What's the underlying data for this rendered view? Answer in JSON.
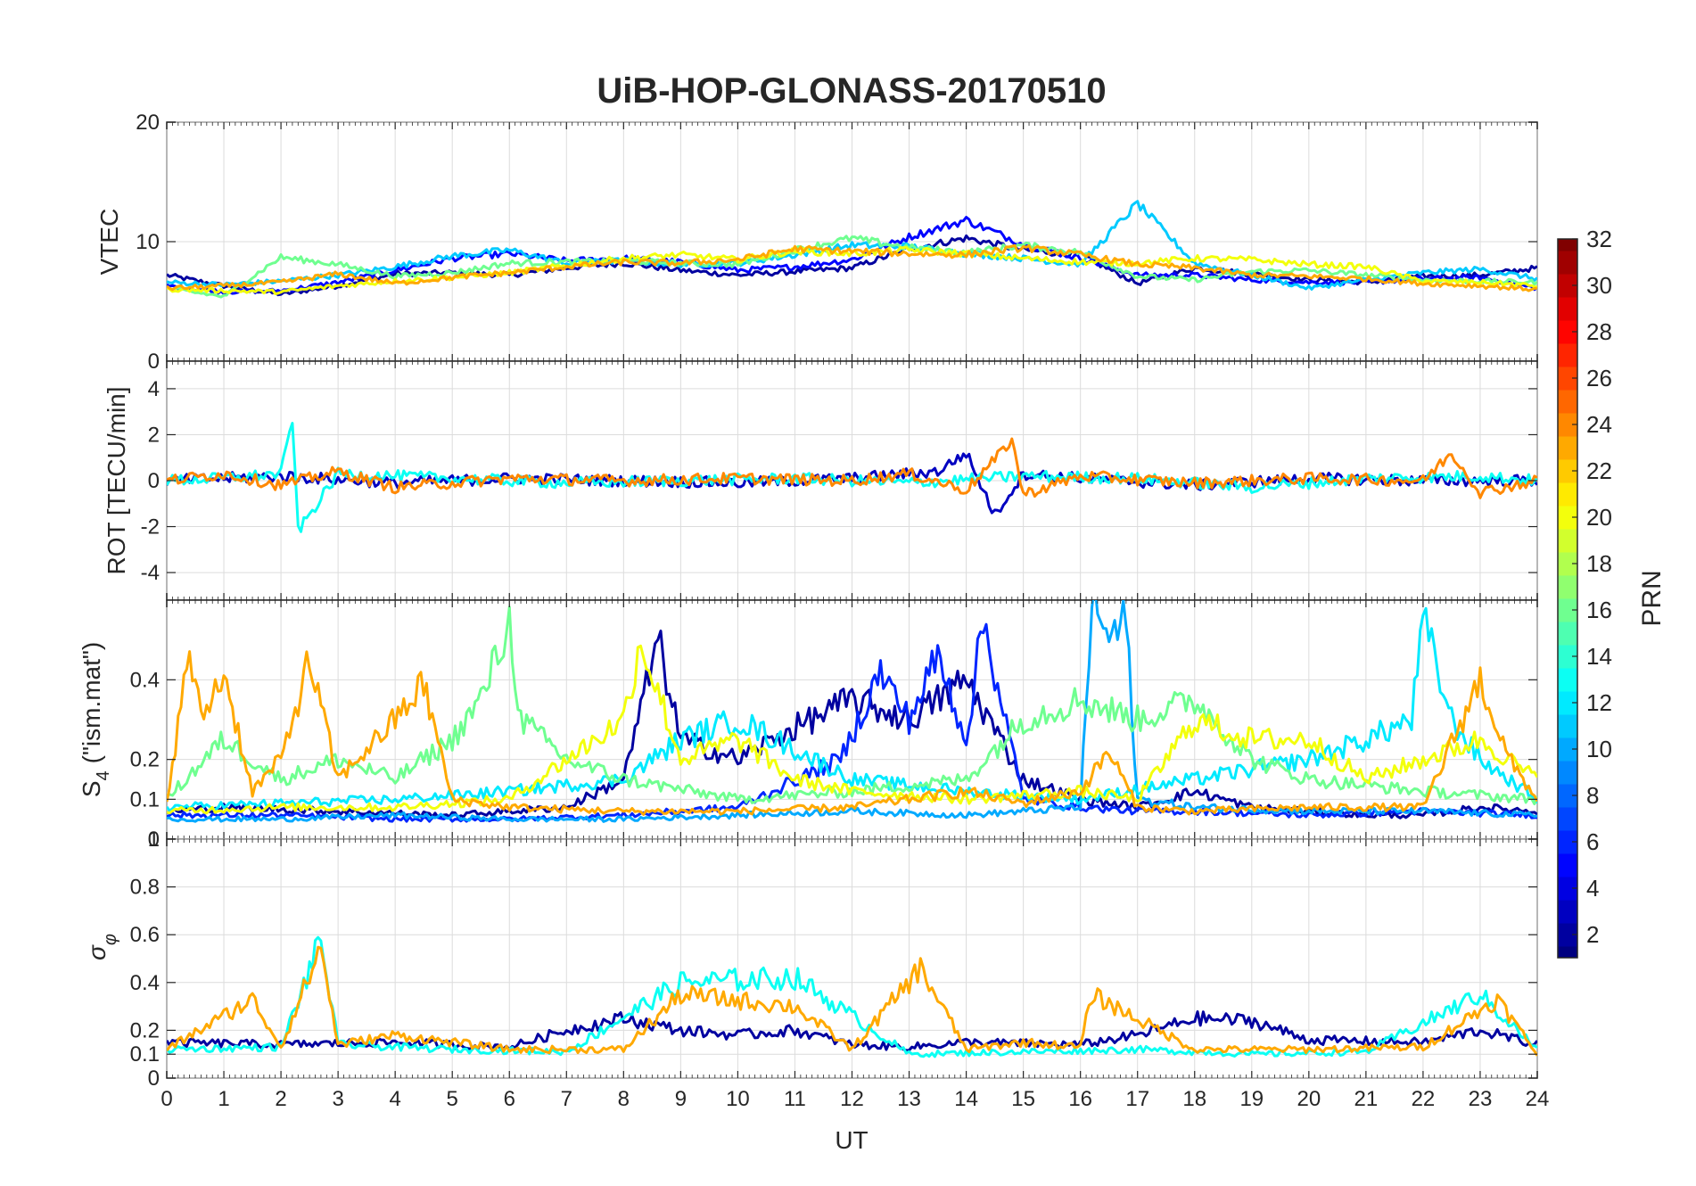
{
  "chart_data": {
    "type": "line",
    "title": "UiB-HOP-GLONASS-20170510",
    "xlabel": "UT",
    "xlim": [
      0,
      24
    ],
    "xticks": [
      "0",
      "1",
      "2",
      "3",
      "4",
      "5",
      "6",
      "7",
      "8",
      "9",
      "10",
      "11",
      "12",
      "13",
      "14",
      "15",
      "16",
      "17",
      "18",
      "19",
      "20",
      "21",
      "22",
      "23",
      "24"
    ],
    "grid": true,
    "colorbar": {
      "label": "PRN",
      "range": [
        1,
        32
      ],
      "ticks": [
        "2",
        "4",
        "6",
        "8",
        "10",
        "12",
        "14",
        "16",
        "18",
        "20",
        "22",
        "24",
        "26",
        "28",
        "30",
        "32"
      ],
      "colormap": "jet"
    },
    "panels": [
      {
        "name": "vtec",
        "ylabel": "VTEC",
        "ylim": [
          0,
          20
        ],
        "yticks": [
          "0",
          "10",
          "20"
        ],
        "ytick_values": [
          0,
          10,
          20
        ],
        "series": [
          {
            "prn": 2,
            "x": [
              0,
              1,
              2,
              3,
              4,
              5,
              6,
              7,
              8,
              9,
              10,
              11,
              12,
              13,
              14,
              15,
              16,
              17,
              18,
              19,
              20,
              21,
              22,
              23,
              24
            ],
            "values": [
              7.2,
              6.3,
              5.6,
              6.3,
              7.3,
              7.4,
              7.2,
              7.8,
              8.2,
              7.6,
              7.2,
              7.5,
              7.8,
              9.4,
              10.3,
              9.3,
              8.9,
              6.5,
              7.8,
              7.3,
              6.8,
              6.6,
              7.1,
              7.2,
              7.8
            ]
          },
          {
            "prn": 5,
            "x": [
              0,
              1,
              2,
              3,
              4,
              5,
              6,
              7,
              8,
              9,
              10,
              11,
              12,
              13,
              14,
              15,
              16,
              17,
              18,
              19,
              20,
              21,
              22,
              23,
              24
            ],
            "values": [
              6.3,
              5.8,
              5.9,
              6.6,
              7.6,
              8.6,
              9.0,
              8.4,
              8.6,
              8.3,
              7.6,
              7.9,
              8.5,
              10.4,
              11.8,
              9.8,
              8.6,
              7.2,
              7.2,
              6.8,
              6.6,
              6.6,
              6.9,
              7.0,
              6.1
            ]
          },
          {
            "prn": 11,
            "x": [
              0,
              1,
              2,
              3,
              4,
              5,
              6,
              7,
              8,
              9,
              10,
              11,
              12,
              13,
              14,
              15,
              16,
              17,
              18,
              19,
              20,
              21,
              22,
              23,
              24
            ],
            "values": [
              6.6,
              6.4,
              6.7,
              7.2,
              7.9,
              8.8,
              9.3,
              8.2,
              8.4,
              8.1,
              8.2,
              8.9,
              9.7,
              9.6,
              9.0,
              8.6,
              8.1,
              13.2,
              8.2,
              7.2,
              6.1,
              6.8,
              7.4,
              7.7,
              6.9
            ]
          },
          {
            "prn": 16,
            "x": [
              0,
              1,
              2,
              3,
              4,
              5,
              6,
              7,
              8,
              9,
              10,
              11,
              12,
              13,
              14,
              15,
              16,
              17,
              18,
              19,
              20,
              21,
              22,
              23,
              24
            ],
            "values": [
              6.1,
              5.4,
              8.7,
              8.1,
              7.1,
              7.4,
              8.2,
              8.3,
              8.4,
              8.2,
              8.1,
              9.3,
              10.3,
              9.5,
              9.1,
              9.7,
              9.1,
              7.1,
              6.8,
              7.5,
              7.6,
              7.2,
              6.8,
              6.7,
              6.6
            ]
          },
          {
            "prn": 20,
            "x": [
              0,
              1,
              2,
              3,
              4,
              5,
              6,
              7,
              8,
              9,
              10,
              11,
              12,
              13,
              14,
              15,
              16,
              17,
              18,
              19,
              20,
              21,
              22,
              23,
              24
            ],
            "values": [
              6.0,
              5.9,
              5.8,
              6.3,
              6.7,
              7.0,
              7.4,
              8.0,
              8.6,
              8.9,
              8.5,
              9.2,
              9.0,
              9.3,
              9.0,
              8.6,
              8.3,
              8.2,
              8.6,
              8.5,
              8.1,
              7.9,
              6.7,
              6.6,
              6.3
            ]
          },
          {
            "prn": 23,
            "x": [
              0,
              1,
              2,
              3,
              4,
              5,
              6,
              7,
              8,
              9,
              10,
              11,
              12,
              13,
              14,
              15,
              16,
              17,
              18,
              19,
              20,
              21,
              22,
              23,
              24
            ],
            "values": [
              6.1,
              6.3,
              6.6,
              7.3,
              6.5,
              7.0,
              7.4,
              7.9,
              8.3,
              8.2,
              8.5,
              9.4,
              9.2,
              9.0,
              8.9,
              9.5,
              8.9,
              8.1,
              7.8,
              7.2,
              7.1,
              6.9,
              6.5,
              6.3,
              6.0
            ]
          }
        ]
      },
      {
        "name": "rot",
        "ylabel": "ROT [TECU/min]",
        "ylim": [
          -5.2,
          5.2
        ],
        "yticks": [
          "-4",
          "-2",
          "0",
          "2",
          "4"
        ],
        "ytick_values": [
          -4,
          -2,
          0,
          2,
          4
        ],
        "series": [
          {
            "prn": 3,
            "x": [
              0,
              2,
              4,
              6,
              8,
              10,
              12,
              13.5,
              14,
              14.5,
              15,
              16,
              18,
              20,
              22,
              24
            ],
            "values": [
              0,
              0.2,
              -0.1,
              0.1,
              0,
              -0.1,
              0.1,
              0.4,
              1.2,
              -1.5,
              0.3,
              0.1,
              -0.2,
              0.1,
              0,
              0
            ]
          },
          {
            "prn": 13,
            "x": [
              0,
              1,
              2,
              2.2,
              2.3,
              3,
              5,
              7,
              9,
              11,
              13,
              15,
              17,
              19,
              21,
              23,
              24
            ],
            "values": [
              0,
              0.1,
              0.3,
              2.7,
              -2.2,
              0.3,
              0.1,
              -0.1,
              0,
              0.1,
              -0.1,
              0.2,
              0.1,
              -0.3,
              0.1,
              0.2,
              0
            ]
          },
          {
            "prn": 24,
            "x": [
              0,
              1,
              2,
              3,
              4,
              6,
              8,
              10,
              12,
              13,
              14,
              14.5,
              14.8,
              15,
              16,
              18,
              20,
              22,
              22.5,
              23,
              24
            ],
            "values": [
              0,
              0.3,
              -0.2,
              0.4,
              -0.3,
              0.1,
              0,
              0.1,
              0,
              0.3,
              -0.4,
              0.9,
              1.8,
              -0.6,
              0.2,
              -0.1,
              0.1,
              0,
              1.2,
              -0.5,
              0
            ]
          }
        ]
      },
      {
        "name": "s4",
        "ylabel": "S4 (\"ism.mat\")",
        "ylabel_main": "S",
        "ylabel_sub": "4",
        "ylabel_rest": "(\"ism.mat\")",
        "ylim": [
          0,
          0.6
        ],
        "yticks": [
          "0",
          "0.1",
          "0.2",
          "0.4"
        ],
        "ytick_values": [
          0,
          0.1,
          0.2,
          0.4
        ],
        "series": [
          {
            "prn": 2,
            "x": [
              0,
              1,
              3,
              5,
              7,
              8,
              8.6,
              9,
              10,
              11,
              12,
              13,
              14,
              15,
              16,
              17,
              18,
              19,
              20,
              21,
              22,
              23,
              24
            ],
            "values": [
              0.07,
              0.08,
              0.07,
              0.06,
              0.08,
              0.15,
              0.5,
              0.25,
              0.2,
              0.28,
              0.35,
              0.3,
              0.4,
              0.15,
              0.1,
              0.08,
              0.12,
              0.08,
              0.07,
              0.06,
              0.06,
              0.08,
              0.07
            ]
          },
          {
            "prn": 6,
            "x": [
              0,
              2,
              4,
              6,
              8,
              10,
              11.8,
              12.5,
              13,
              13.5,
              14,
              14.3,
              15,
              16,
              17,
              18,
              20,
              22,
              24
            ],
            "values": [
              0.06,
              0.06,
              0.05,
              0.05,
              0.06,
              0.08,
              0.2,
              0.42,
              0.3,
              0.46,
              0.25,
              0.55,
              0.1,
              0.08,
              0.07,
              0.07,
              0.06,
              0.07,
              0.06
            ]
          },
          {
            "prn": 10,
            "x": [
              0,
              2,
              4,
              6,
              8,
              10,
              12,
              14,
              15,
              16,
              16.2,
              16.5,
              16.8,
              17,
              18,
              20,
              22,
              24
            ],
            "values": [
              0.05,
              0.05,
              0.06,
              0.05,
              0.05,
              0.06,
              0.07,
              0.06,
              0.07,
              0.08,
              0.6,
              0.5,
              0.55,
              0.1,
              0.08,
              0.07,
              0.07,
              0.06
            ]
          },
          {
            "prn": 12,
            "x": [
              0,
              2,
              4,
              6,
              8,
              9,
              10,
              12,
              14,
              16,
              18,
              20,
              21,
              21.8,
              22,
              22.5,
              23,
              24
            ],
            "values": [
              0.08,
              0.09,
              0.1,
              0.12,
              0.15,
              0.25,
              0.3,
              0.15,
              0.12,
              0.1,
              0.15,
              0.2,
              0.25,
              0.3,
              0.55,
              0.3,
              0.2,
              0.1
            ]
          },
          {
            "prn": 16,
            "x": [
              0,
              1,
              2,
              3,
              4,
              5,
              5.5,
              6,
              6.2,
              7,
              8,
              10,
              12,
              14,
              15,
              16,
              17,
              18,
              19,
              20,
              22,
              24
            ],
            "values": [
              0.1,
              0.25,
              0.15,
              0.2,
              0.15,
              0.25,
              0.35,
              0.54,
              0.3,
              0.2,
              0.15,
              0.1,
              0.12,
              0.15,
              0.3,
              0.35,
              0.3,
              0.35,
              0.2,
              0.15,
              0.12,
              0.1
            ]
          },
          {
            "prn": 20,
            "x": [
              0,
              2,
              4,
              6,
              7,
              8,
              8.3,
              9,
              10,
              11,
              12,
              14,
              16,
              17,
              18,
              19,
              20,
              21,
              22,
              23,
              24
            ],
            "values": [
              0.07,
              0.08,
              0.08,
              0.1,
              0.2,
              0.3,
              0.5,
              0.2,
              0.25,
              0.15,
              0.12,
              0.1,
              0.12,
              0.1,
              0.3,
              0.25,
              0.25,
              0.15,
              0.2,
              0.25,
              0.15
            ]
          },
          {
            "prn": 23,
            "x": [
              0,
              0.4,
              0.6,
              1,
              1.5,
              2,
              2.5,
              3,
              4,
              4.5,
              5,
              6,
              8,
              10,
              12,
              13,
              14,
              15,
              16,
              16.5,
              17,
              18,
              20,
              22,
              23,
              23.5,
              24
            ],
            "values": [
              0.1,
              0.47,
              0.3,
              0.42,
              0.12,
              0.2,
              0.45,
              0.15,
              0.3,
              0.39,
              0.1,
              0.08,
              0.07,
              0.07,
              0.08,
              0.1,
              0.12,
              0.09,
              0.12,
              0.22,
              0.08,
              0.07,
              0.08,
              0.08,
              0.4,
              0.2,
              0.1
            ]
          }
        ]
      },
      {
        "name": "sigma_phi",
        "ylabel": "σφ",
        "ylabel_main": "σ",
        "ylabel_sub": "φ",
        "ylim": [
          0,
          1
        ],
        "yticks": [
          "0",
          "0.1",
          "0.2",
          "0.4",
          "0.6",
          "0.8",
          "1"
        ],
        "ytick_values": [
          0,
          0.1,
          0.2,
          0.4,
          0.6,
          0.8,
          1.0
        ],
        "series": [
          {
            "prn": 2,
            "x": [
              0,
              2,
              4,
              6,
              7,
              8,
              9,
              10,
              11,
              12,
              13,
              14,
              16,
              17,
              18,
              19,
              20,
              22,
              23,
              24
            ],
            "values": [
              0.15,
              0.14,
              0.15,
              0.13,
              0.2,
              0.25,
              0.2,
              0.18,
              0.2,
              0.14,
              0.13,
              0.15,
              0.14,
              0.18,
              0.25,
              0.24,
              0.16,
              0.15,
              0.2,
              0.14
            ]
          },
          {
            "prn": 13,
            "x": [
              0,
              2,
              2.7,
              3,
              5,
              7,
              9,
              11,
              13,
              15,
              17,
              19,
              21,
              23,
              24
            ],
            "values": [
              0.12,
              0.13,
              0.58,
              0.14,
              0.12,
              0.11,
              0.4,
              0.42,
              0.1,
              0.11,
              0.12,
              0.1,
              0.11,
              0.35,
              0.12
            ]
          },
          {
            "prn": 23,
            "x": [
              0,
              1.5,
              2,
              2.7,
              3,
              4,
              5,
              6,
              8,
              9,
              11,
              12,
              13.2,
              14,
              15,
              16,
              16.2,
              18,
              20,
              22,
              23.3,
              24
            ],
            "values": [
              0.12,
              0.33,
              0.13,
              0.55,
              0.14,
              0.18,
              0.15,
              0.12,
              0.12,
              0.35,
              0.3,
              0.12,
              0.46,
              0.12,
              0.15,
              0.13,
              0.35,
              0.12,
              0.12,
              0.13,
              0.33,
              0.1
            ]
          }
        ]
      }
    ]
  }
}
